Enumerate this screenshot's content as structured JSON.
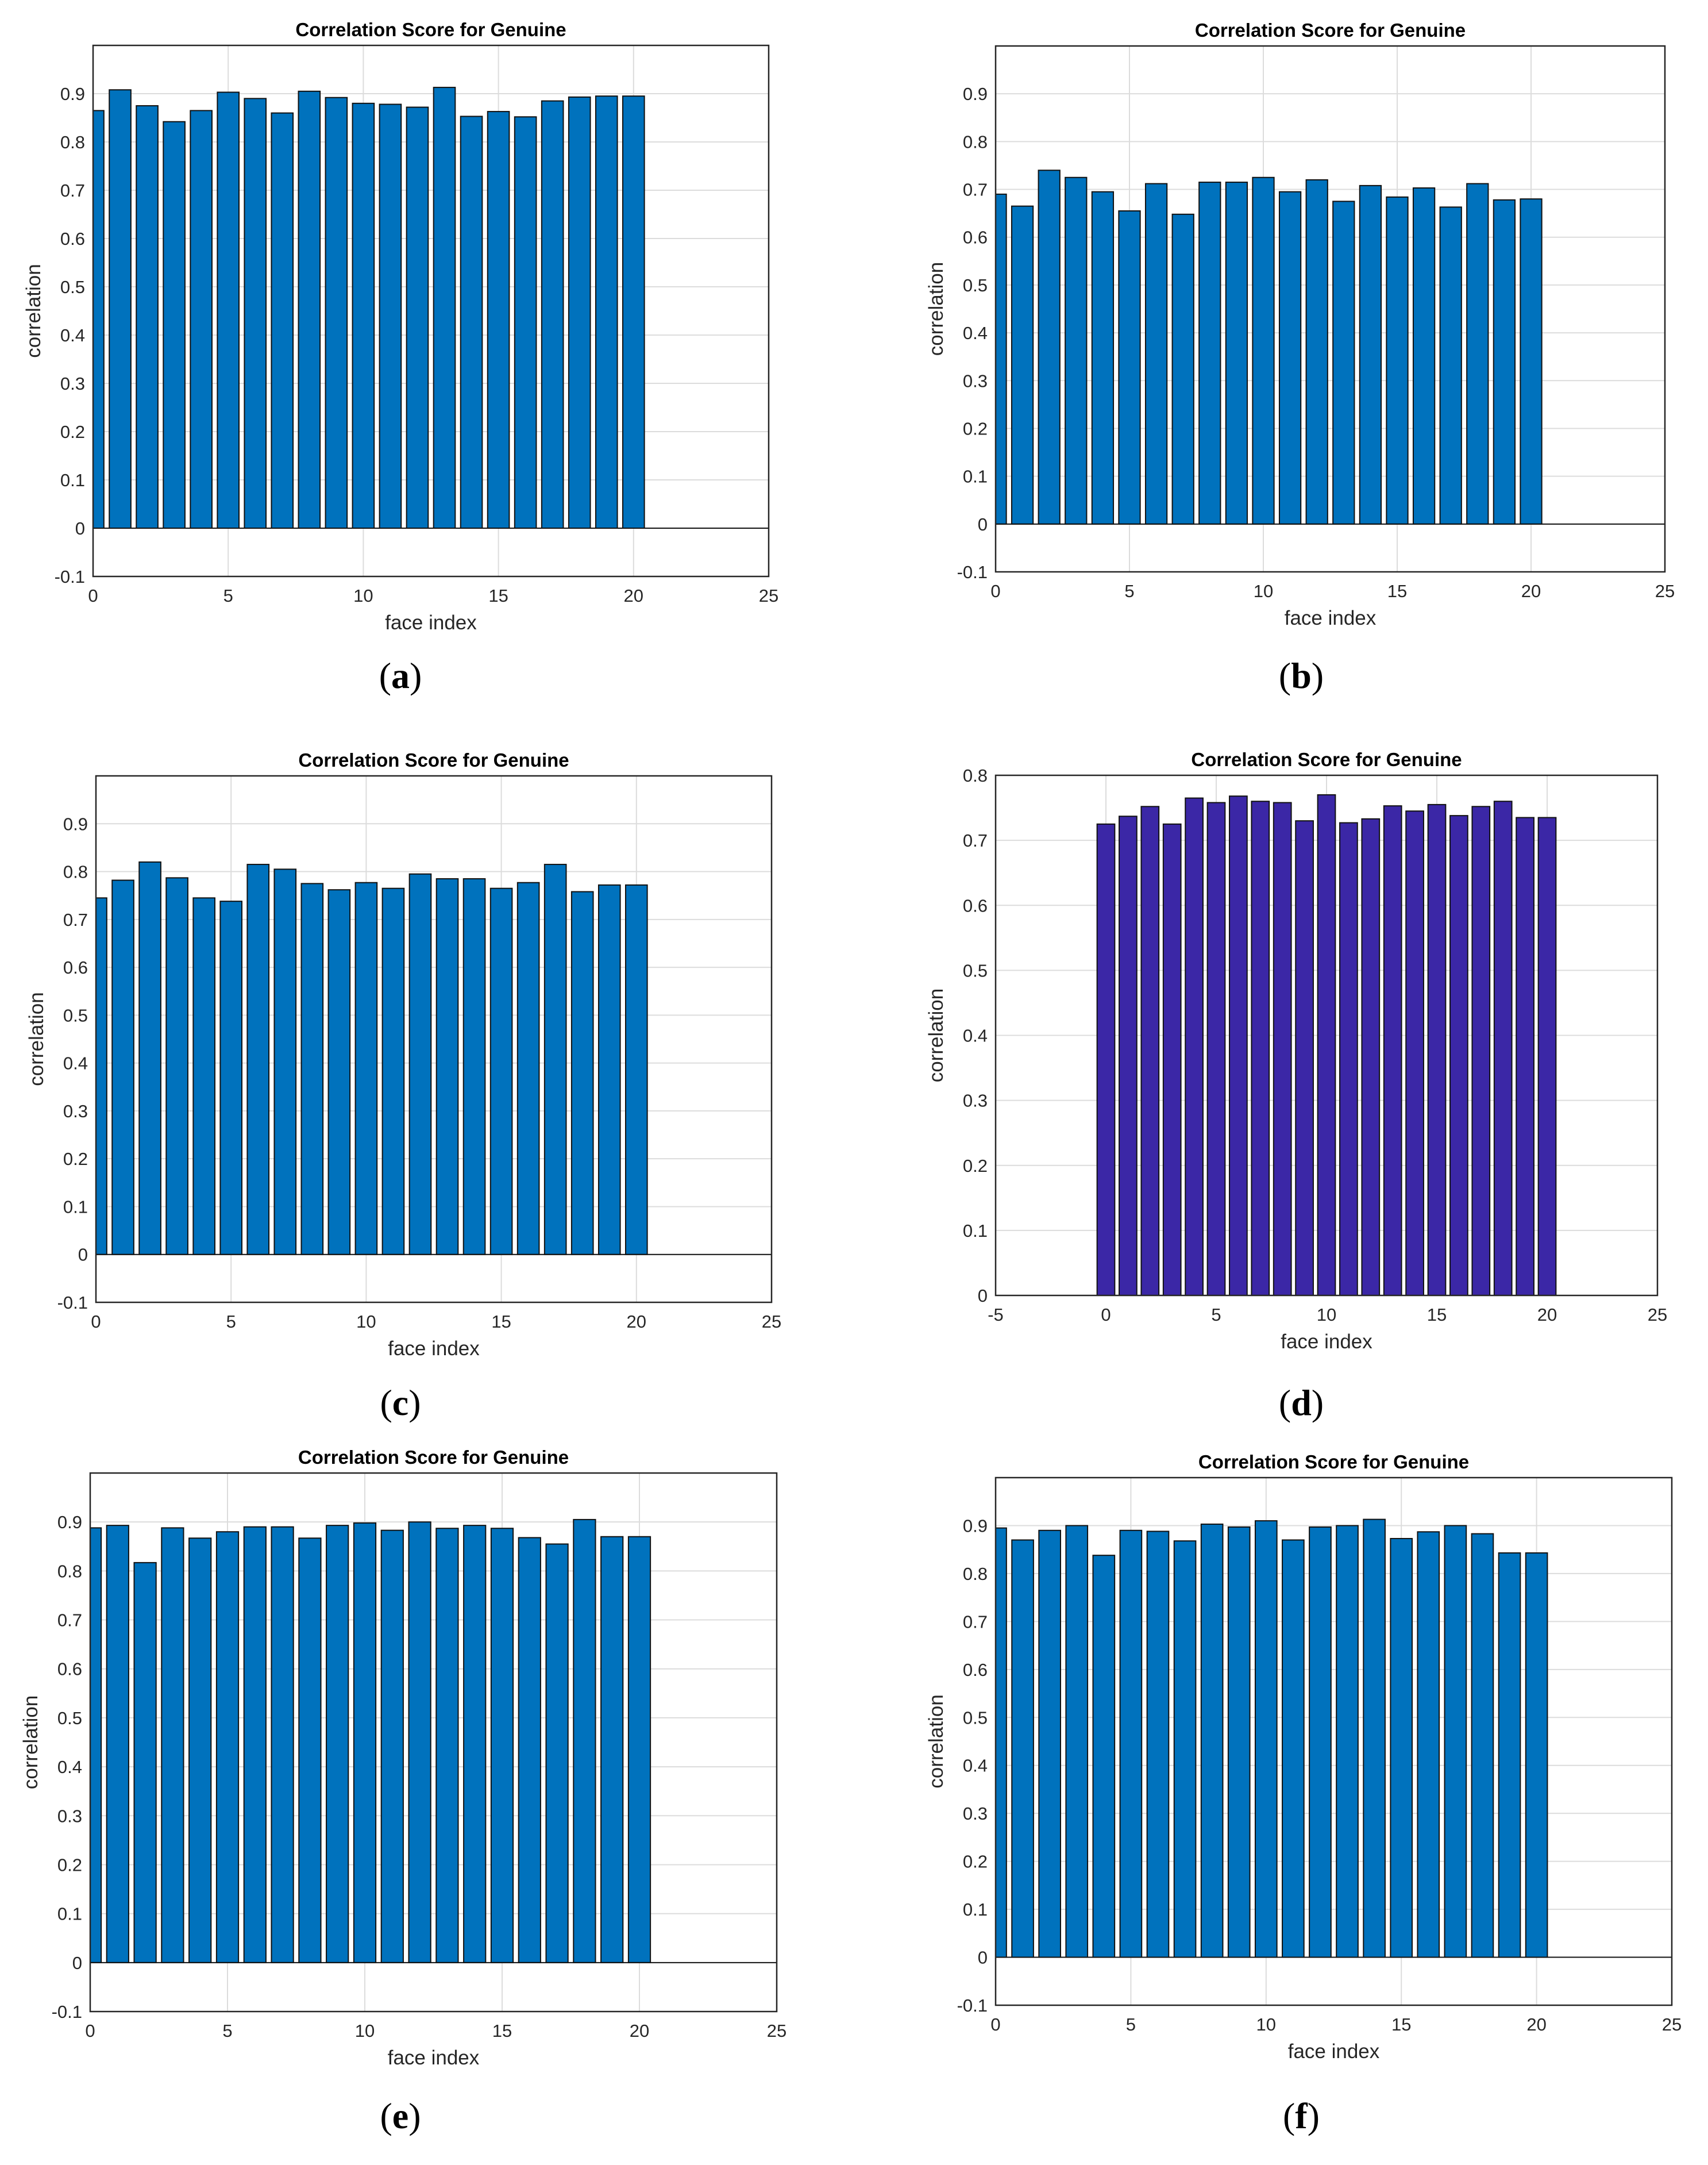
{
  "colors": {
    "bar_blue": "#0072BD",
    "bar_purple": "#3B27A6",
    "grid": "#dcdcdc"
  },
  "chart_data": [
    {
      "id": "a",
      "type": "bar",
      "title": "Correlation Score for Genuine",
      "xlabel": "face index",
      "ylabel": "correlation",
      "caption_letter": "a",
      "xlim": [
        0,
        25
      ],
      "ylim": [
        -0.1,
        1.0
      ],
      "xticks": [
        0,
        5,
        10,
        15,
        20,
        25
      ],
      "yticks": [
        -0.1,
        0,
        0.1,
        0.2,
        0.3,
        0.4,
        0.5,
        0.6,
        0.7,
        0.8,
        0.9
      ],
      "bar_color": "#0072BD",
      "x": [
        0,
        1,
        2,
        3,
        4,
        5,
        6,
        7,
        8,
        9,
        10,
        11,
        12,
        13,
        14,
        15,
        16,
        17,
        18,
        19,
        20
      ],
      "values": [
        0.865,
        0.908,
        0.875,
        0.842,
        0.865,
        0.903,
        0.89,
        0.86,
        0.905,
        0.892,
        0.88,
        0.878,
        0.872,
        0.913,
        0.853,
        0.863,
        0.852,
        0.885,
        0.893,
        0.895,
        0.895
      ]
    },
    {
      "id": "b",
      "type": "bar",
      "title": "Correlation Score for Genuine",
      "xlabel": "face index",
      "ylabel": "correlation",
      "caption_letter": "b",
      "xlim": [
        0,
        25
      ],
      "ylim": [
        -0.1,
        1.0
      ],
      "xticks": [
        0,
        5,
        10,
        15,
        20,
        25
      ],
      "yticks": [
        -0.1,
        0,
        0.1,
        0.2,
        0.3,
        0.4,
        0.5,
        0.6,
        0.7,
        0.8,
        0.9
      ],
      "bar_color": "#0072BD",
      "x": [
        0,
        1,
        2,
        3,
        4,
        5,
        6,
        7,
        8,
        9,
        10,
        11,
        12,
        13,
        14,
        15,
        16,
        17,
        18,
        19,
        20
      ],
      "values": [
        0.69,
        0.665,
        0.74,
        0.725,
        0.695,
        0.655,
        0.712,
        0.648,
        0.715,
        0.715,
        0.725,
        0.695,
        0.72,
        0.675,
        0.708,
        0.684,
        0.703,
        0.663,
        0.712,
        0.678,
        0.68
      ]
    },
    {
      "id": "c",
      "type": "bar",
      "title": "Correlation Score for Genuine",
      "xlabel": "face index",
      "ylabel": "correlation",
      "caption_letter": "c",
      "xlim": [
        0,
        25
      ],
      "ylim": [
        -0.1,
        1.0
      ],
      "xticks": [
        0,
        5,
        10,
        15,
        20,
        25
      ],
      "yticks": [
        -0.1,
        0,
        0.1,
        0.2,
        0.3,
        0.4,
        0.5,
        0.6,
        0.7,
        0.8,
        0.9
      ],
      "bar_color": "#0072BD",
      "x": [
        0,
        1,
        2,
        3,
        4,
        5,
        6,
        7,
        8,
        9,
        10,
        11,
        12,
        13,
        14,
        15,
        16,
        17,
        18,
        19,
        20
      ],
      "values": [
        0.745,
        0.782,
        0.82,
        0.787,
        0.745,
        0.738,
        0.815,
        0.805,
        0.775,
        0.762,
        0.777,
        0.765,
        0.795,
        0.785,
        0.785,
        0.765,
        0.777,
        0.815,
        0.758,
        0.772,
        0.772
      ]
    },
    {
      "id": "d",
      "type": "bar",
      "title": "Correlation Score for Genuine",
      "xlabel": "face index",
      "ylabel": "correlation",
      "caption_letter": "d",
      "xlim": [
        -5,
        25
      ],
      "ylim": [
        0,
        0.8
      ],
      "xticks": [
        -5,
        0,
        5,
        10,
        15,
        20,
        25
      ],
      "yticks": [
        0,
        0.1,
        0.2,
        0.3,
        0.4,
        0.5,
        0.6,
        0.7,
        0.8
      ],
      "bar_color": "#3B27A6",
      "x": [
        0,
        1,
        2,
        3,
        4,
        5,
        6,
        7,
        8,
        9,
        10,
        11,
        12,
        13,
        14,
        15,
        16,
        17,
        18,
        19,
        20
      ],
      "values": [
        0.725,
        0.737,
        0.752,
        0.725,
        0.765,
        0.758,
        0.768,
        0.76,
        0.758,
        0.73,
        0.77,
        0.727,
        0.733,
        0.753,
        0.745,
        0.755,
        0.738,
        0.752,
        0.76,
        0.735,
        0.735
      ]
    },
    {
      "id": "e",
      "type": "bar",
      "title": "Correlation Score for Genuine",
      "xlabel": "face index",
      "ylabel": "correlation",
      "caption_letter": "e",
      "xlim": [
        0,
        25
      ],
      "ylim": [
        -0.1,
        1.0
      ],
      "xticks": [
        0,
        5,
        10,
        15,
        20,
        25
      ],
      "yticks": [
        -0.1,
        0,
        0.1,
        0.2,
        0.3,
        0.4,
        0.5,
        0.6,
        0.7,
        0.8,
        0.9
      ],
      "bar_color": "#0072BD",
      "x": [
        0,
        1,
        2,
        3,
        4,
        5,
        6,
        7,
        8,
        9,
        10,
        11,
        12,
        13,
        14,
        15,
        16,
        17,
        18,
        19,
        20
      ],
      "values": [
        0.888,
        0.893,
        0.817,
        0.888,
        0.867,
        0.88,
        0.89,
        0.89,
        0.867,
        0.893,
        0.898,
        0.883,
        0.9,
        0.887,
        0.893,
        0.887,
        0.868,
        0.855,
        0.905,
        0.87,
        0.87
      ]
    },
    {
      "id": "f",
      "type": "bar",
      "title": "Correlation Score for Genuine",
      "xlabel": "face index",
      "ylabel": "correlation",
      "caption_letter": "f",
      "xlim": [
        0,
        25
      ],
      "ylim": [
        -0.1,
        1.0
      ],
      "xticks": [
        0,
        5,
        10,
        15,
        20,
        25
      ],
      "yticks": [
        -0.1,
        0,
        0.1,
        0.2,
        0.3,
        0.4,
        0.5,
        0.6,
        0.7,
        0.8,
        0.9
      ],
      "bar_color": "#0072BD",
      "x": [
        0,
        1,
        2,
        3,
        4,
        5,
        6,
        7,
        8,
        9,
        10,
        11,
        12,
        13,
        14,
        15,
        16,
        17,
        18,
        19,
        20
      ],
      "values": [
        0.895,
        0.87,
        0.89,
        0.9,
        0.838,
        0.89,
        0.888,
        0.868,
        0.903,
        0.897,
        0.91,
        0.87,
        0.897,
        0.9,
        0.913,
        0.873,
        0.887,
        0.9,
        0.883,
        0.843,
        0.843
      ]
    }
  ]
}
